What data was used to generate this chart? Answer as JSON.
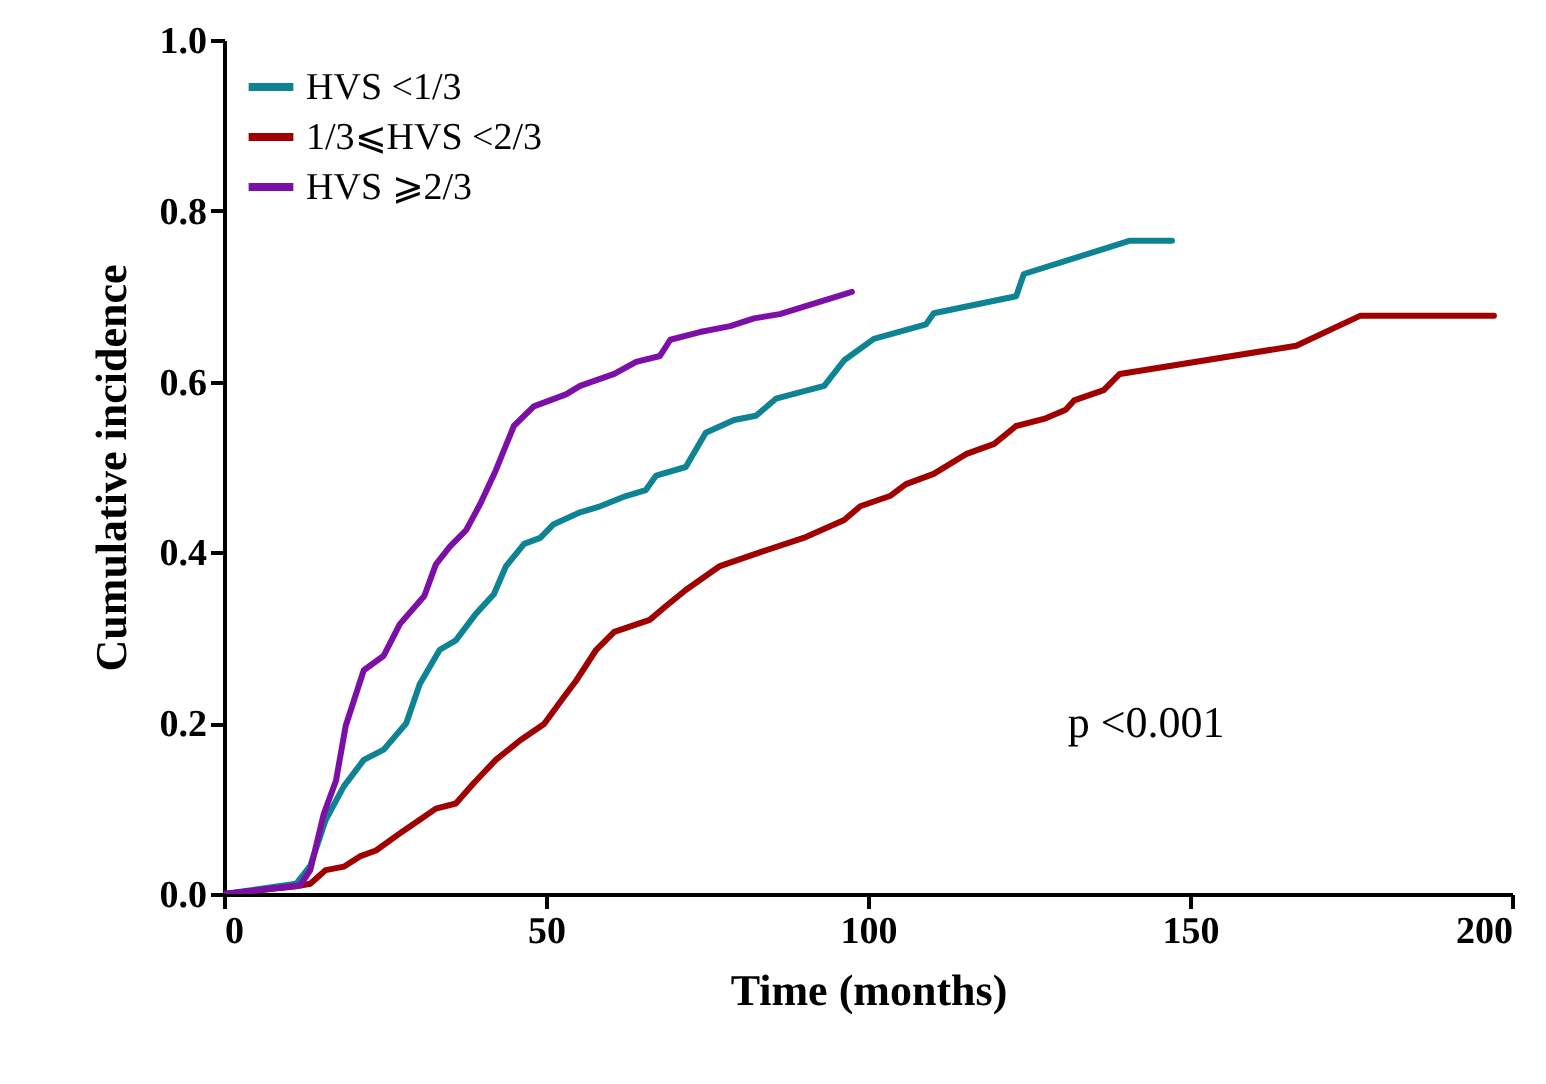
{
  "chart_data": {
    "type": "line",
    "xlabel": "Time (months)",
    "ylabel": "Cumulative  incidence",
    "xlim": [
      0,
      200
    ],
    "xticks": [
      0,
      50,
      100,
      150,
      200
    ],
    "ylim": [
      0,
      1
    ],
    "yticks": [
      {
        "value": 0,
        "label": "0.0"
      },
      {
        "value": 0.2,
        "label": "0.2"
      },
      {
        "value": 0.4,
        "label": "0.4"
      },
      {
        "value": 0.6,
        "label": "0.6"
      },
      {
        "value": 0.8,
        "label": "0.8"
      },
      {
        "value": 1,
        "label": "1.0"
      }
    ],
    "grid": false,
    "legend": "top left",
    "marker": "none",
    "line_style": "solid",
    "annotations": [
      "p <0.001"
    ],
    "series": [
      {
        "name": "HVS <1/3",
        "color": "#0e8394",
        "x": [
          0,
          11.2,
          13.4,
          15.8,
          18.6,
          21.7,
          24.8,
          28.3,
          30.4,
          33.5,
          36,
          39.1,
          41.9,
          43.8,
          46.6,
          49.1,
          51.2,
          55.3,
          58.4,
          62.4,
          65.5,
          67.1,
          71.7,
          74.8,
          79.2,
          82.6,
          85.7,
          93.2,
          96.3,
          100.9,
          109,
          110.2,
          123,
          124.2,
          140.7,
          147.2
        ],
        "values": [
          0,
          0.012,
          0.033,
          0.087,
          0.126,
          0.157,
          0.169,
          0.2,
          0.246,
          0.286,
          0.297,
          0.328,
          0.351,
          0.384,
          0.41,
          0.417,
          0.433,
          0.447,
          0.454,
          0.466,
          0.473,
          0.49,
          0.5,
          0.54,
          0.555,
          0.56,
          0.58,
          0.595,
          0.625,
          0.65,
          0.667,
          0.68,
          0.7,
          0.726,
          0.765,
          0.765
        ]
      },
      {
        "name": "1/3⩽HVS <2/3",
        "color": "#a00000",
        "x": [
          0,
          11.2,
          13.4,
          15.8,
          18.6,
          21.1,
          23.6,
          27.3,
          30.4,
          32.9,
          36,
          38.8,
          42.2,
          46,
          49.7,
          52.8,
          54.7,
          57.8,
          60.6,
          66.1,
          68.6,
          71.7,
          77,
          83.2,
          90,
          96.3,
          98.8,
          103.4,
          105.9,
          110.2,
          115.2,
          119.6,
          123,
          127.6,
          130.7,
          132,
          136.6,
          139.1,
          166.5,
          176.4,
          197.2
        ],
        "values": [
          0,
          0.009,
          0.012,
          0.028,
          0.032,
          0.044,
          0.051,
          0.071,
          0.087,
          0.1,
          0.106,
          0.13,
          0.157,
          0.18,
          0.199,
          0.231,
          0.25,
          0.286,
          0.307,
          0.321,
          0.337,
          0.356,
          0.384,
          0.4,
          0.417,
          0.438,
          0.454,
          0.466,
          0.48,
          0.492,
          0.515,
          0.527,
          0.548,
          0.557,
          0.567,
          0.578,
          0.59,
          0.609,
          0.642,
          0.677,
          0.677
        ]
      },
      {
        "name": "HVS ⩾2/3",
        "color": "#7b0fa8",
        "x": [
          0,
          11.8,
          13.4,
          15.5,
          17.4,
          18.9,
          21.7,
          24.8,
          27.3,
          31.1,
          32.9,
          35.1,
          37.6,
          39.8,
          42.2,
          45,
          48.1,
          53.1,
          55.3,
          60.6,
          64,
          67.7,
          69.3,
          73.9,
          78.6,
          82.3,
          86.3,
          97.5
        ],
        "values": [
          0,
          0.01,
          0.028,
          0.094,
          0.133,
          0.197,
          0.262,
          0.279,
          0.316,
          0.349,
          0.386,
          0.407,
          0.426,
          0.457,
          0.496,
          0.548,
          0.571,
          0.585,
          0.595,
          0.609,
          0.623,
          0.63,
          0.649,
          0.658,
          0.665,
          0.674,
          0.679,
          0.705
        ]
      }
    ]
  }
}
